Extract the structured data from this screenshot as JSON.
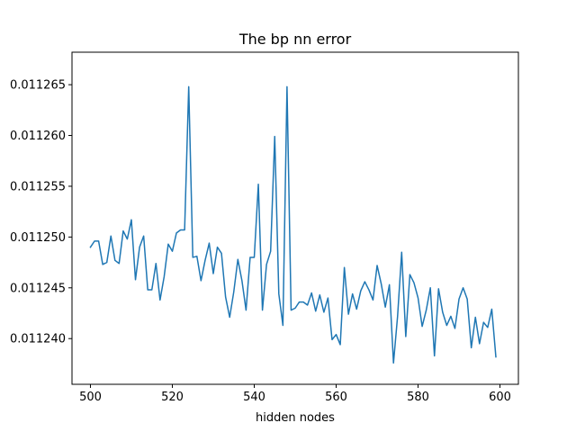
{
  "chart_data": {
    "type": "line",
    "title": "The bp nn error",
    "xlabel": "hidden nodes",
    "ylabel": "",
    "xlim": [
      495.5,
      604.5
    ],
    "ylim": [
      0.0112355,
      0.0112682
    ],
    "grid": false,
    "xticks": [
      500,
      520,
      540,
      560,
      580,
      600
    ],
    "xtick_labels": [
      "500",
      "520",
      "540",
      "560",
      "580",
      "600"
    ],
    "yticks": [
      0.01124,
      0.011245,
      0.01125,
      0.011255,
      0.01126,
      0.011265
    ],
    "ytick_labels": [
      "0.011240",
      "0.011245",
      "0.011250",
      "0.011255",
      "0.011260",
      "0.011265"
    ],
    "series": [
      {
        "color": "#1f77b4",
        "x": [
          500,
          501,
          502,
          503,
          504,
          505,
          506,
          507,
          508,
          509,
          510,
          511,
          512,
          513,
          514,
          515,
          516,
          517,
          518,
          519,
          520,
          521,
          522,
          523,
          524,
          525,
          526,
          527,
          528,
          529,
          530,
          531,
          532,
          533,
          534,
          535,
          536,
          537,
          538,
          539,
          540,
          541,
          542,
          543,
          544,
          545,
          546,
          547,
          548,
          549,
          550,
          551,
          552,
          553,
          554,
          555,
          556,
          557,
          558,
          559,
          560,
          561,
          562,
          563,
          564,
          565,
          566,
          567,
          568,
          569,
          570,
          571,
          572,
          573,
          574,
          575,
          576,
          577,
          578,
          579,
          580,
          581,
          582,
          583,
          584,
          585,
          586,
          587,
          588,
          589,
          590,
          591,
          592,
          593,
          594,
          595,
          596,
          597,
          598,
          599
        ],
        "y": [
          0.011249,
          0.0112496,
          0.0112496,
          0.0112473,
          0.0112475,
          0.0112501,
          0.0112477,
          0.0112474,
          0.0112506,
          0.0112498,
          0.0112517,
          0.0112458,
          0.011249,
          0.0112501,
          0.0112448,
          0.0112448,
          0.0112474,
          0.0112438,
          0.0112461,
          0.0112493,
          0.0112486,
          0.0112504,
          0.0112507,
          0.0112507,
          0.0112648,
          0.011248,
          0.0112481,
          0.0112457,
          0.0112477,
          0.0112494,
          0.0112464,
          0.011249,
          0.0112484,
          0.0112441,
          0.0112421,
          0.0112446,
          0.0112478,
          0.0112457,
          0.0112428,
          0.011248,
          0.011248,
          0.0112552,
          0.0112428,
          0.0112473,
          0.0112486,
          0.0112599,
          0.0112444,
          0.0112413,
          0.0112648,
          0.0112428,
          0.011243,
          0.0112436,
          0.0112436,
          0.0112433,
          0.0112445,
          0.0112427,
          0.0112443,
          0.0112426,
          0.011244,
          0.0112399,
          0.0112404,
          0.0112394,
          0.011247,
          0.0112424,
          0.0112444,
          0.0112429,
          0.0112447,
          0.0112456,
          0.0112448,
          0.0112438,
          0.0112472,
          0.0112454,
          0.0112431,
          0.0112453,
          0.0112376,
          0.0112422,
          0.0112485,
          0.0112402,
          0.0112463,
          0.0112455,
          0.011244,
          0.0112412,
          0.0112428,
          0.011245,
          0.0112383,
          0.0112449,
          0.0112426,
          0.0112413,
          0.0112422,
          0.011241,
          0.0112439,
          0.011245,
          0.0112439,
          0.0112391,
          0.0112421,
          0.0112395,
          0.0112416,
          0.0112411,
          0.0112429,
          0.0112382
        ]
      }
    ]
  }
}
